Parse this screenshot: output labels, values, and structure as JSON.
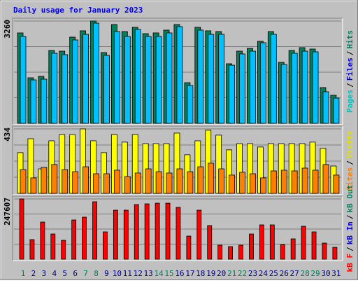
{
  "chart_data": [
    {
      "type": "bar",
      "title": "Daily usage for January 2023",
      "ylim": [
        0,
        3260
      ],
      "yticks": [
        3260
      ],
      "legend_separator": "/",
      "series": [
        {
          "name": "Pages",
          "color": "#00c0c0"
        },
        {
          "name": "Files",
          "color": "#0000ff",
          "fill": "#00c0ff",
          "values": [
            2769,
            1384,
            1407,
            2233,
            2188,
            2657,
            2836,
            3193,
            2166,
            2925,
            2769,
            2992,
            2769,
            2769,
            2881,
            3082,
            1206,
            2970,
            2836,
            2836,
            1853,
            2211,
            2300,
            2568,
            2836,
            1876,
            2233,
            2300,
            2278,
            1005,
            804
          ]
        },
        {
          "name": "Hits",
          "color": "#00805c",
          "fill": "#00805c",
          "values": [
            2881,
            1451,
            1496,
            2322,
            2300,
            2747,
            2948,
            3260,
            2255,
            3149,
            2925,
            3059,
            2858,
            2881,
            2970,
            3149,
            1295,
            3059,
            2948,
            2925,
            1898,
            2300,
            2389,
            2613,
            2925,
            1943,
            2322,
            2412,
            2367,
            1139,
            893
          ]
        }
      ]
    },
    {
      "type": "bar",
      "ylim": [
        0,
        434
      ],
      "yticks": [
        434
      ],
      "legend_separator": "/",
      "series": [
        {
          "name": "Sites",
          "color": "#ff8000",
          "fill": "#ff8000",
          "values": [
            160,
            104,
            175,
            194,
            160,
            146,
            179,
            132,
            132,
            156,
            113,
            137,
            165,
            146,
            137,
            165,
            146,
            179,
            203,
            165,
            123,
            142,
            132,
            104,
            151,
            156,
            151,
            170,
            156,
            194,
            123
          ]
        },
        {
          "name": "Visits",
          "color": "#e0e000",
          "fill": "#ffff00",
          "values": [
            274,
            368,
            165,
            354,
            396,
            396,
            434,
            354,
            274,
            396,
            345,
            396,
            335,
            335,
            335,
            406,
            260,
            354,
            425,
            392,
            293,
            335,
            335,
            312,
            335,
            335,
            335,
            335,
            345,
            302,
            184
          ]
        }
      ]
    },
    {
      "type": "bar",
      "ylim": [
        0,
        247607
      ],
      "yticks": [
        247607
      ],
      "legend_separator": "/",
      "series": [
        {
          "name": "kB F",
          "color": "#ff0000",
          "fill": "#ff0000",
          "values": [
            247607,
            80612,
            152587,
            103644,
            77733,
            161224,
            172740,
            236078,
            112281,
            201530,
            201530,
            224562,
            227441,
            230320,
            230320,
            213046,
            95007,
            201530,
            138192,
            57580,
            51822,
            57580,
            103644,
            141071,
            141071,
            60459,
            83491,
            135313,
            112281,
            66217,
            48943
          ]
        },
        {
          "name": "kB In",
          "color": "#0000ff"
        },
        {
          "name": "kB Out",
          "color": "#00805c"
        }
      ],
      "categories": [
        "1",
        "2",
        "3",
        "4",
        "5",
        "6",
        "7",
        "8",
        "9",
        "10",
        "11",
        "12",
        "13",
        "14",
        "15",
        "16",
        "17",
        "18",
        "19",
        "20",
        "21",
        "22",
        "23",
        "24",
        "25",
        "26",
        "27",
        "28",
        "29",
        "30",
        "31"
      ],
      "category_colors": [
        "#00805c",
        "#000080",
        "#000080",
        "#000080",
        "#000080",
        "#000080",
        "#00805c",
        "#00805c",
        "#000080",
        "#000080",
        "#000080",
        "#000080",
        "#000080",
        "#00805c",
        "#00805c",
        "#000080",
        "#000080",
        "#000080",
        "#000080",
        "#000080",
        "#00805c",
        "#00805c",
        "#000080",
        "#000080",
        "#000080",
        "#000080",
        "#000080",
        "#00805c",
        "#00805c",
        "#000080",
        "#000080"
      ]
    }
  ]
}
